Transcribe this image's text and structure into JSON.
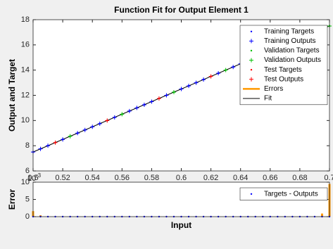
{
  "chart_data": [
    {
      "type": "scatter",
      "title": "Function Fit for Output Element 1",
      "y_label": "Output and Target",
      "xlim": [
        0.5,
        0.7
      ],
      "xticks": [
        0.5,
        0.52,
        0.54,
        0.56,
        0.58,
        0.6,
        0.62,
        0.64,
        0.66,
        0.68,
        0.7
      ],
      "ylim": [
        6,
        18
      ],
      "yticks": [
        6,
        8,
        10,
        12,
        14,
        16,
        18
      ],
      "legend": "upper right",
      "series": [
        {
          "name": "Training Targets",
          "color": "#0000ff",
          "marker": "dot",
          "x": [
            0.5,
            0.505,
            0.51,
            0.52,
            0.53,
            0.535,
            0.54,
            0.545,
            0.555,
            0.565,
            0.57,
            0.575,
            0.58,
            0.59,
            0.6,
            0.605,
            0.61,
            0.615,
            0.625,
            0.635,
            0.64,
            0.645,
            0.65,
            0.66,
            0.67,
            0.675,
            0.68,
            0.685,
            0.695
          ],
          "values": [
            7.5,
            7.75,
            8,
            8.5,
            9,
            9.25,
            9.5,
            9.75,
            10.25,
            10.75,
            11,
            11.25,
            11.5,
            12,
            12.5,
            12.75,
            13,
            13.25,
            13.75,
            14.25,
            14.5,
            14.75,
            15,
            15.5,
            16,
            16.25,
            16.5,
            16.75,
            17.25
          ]
        },
        {
          "name": "Training Outputs",
          "color": "#0000ff",
          "marker": "plus",
          "x": [
            0.5,
            0.505,
            0.51,
            0.52,
            0.53,
            0.535,
            0.54,
            0.545,
            0.555,
            0.565,
            0.57,
            0.575,
            0.58,
            0.59,
            0.6,
            0.605,
            0.61,
            0.615,
            0.625,
            0.635,
            0.64,
            0.645,
            0.65,
            0.66,
            0.67,
            0.675,
            0.68,
            0.685,
            0.695
          ],
          "values": [
            7.5,
            7.75,
            8,
            8.5,
            9,
            9.25,
            9.5,
            9.75,
            10.25,
            10.75,
            11,
            11.25,
            11.5,
            12,
            12.5,
            12.75,
            13,
            13.25,
            13.75,
            14.25,
            14.5,
            14.75,
            15,
            15.5,
            16,
            16.25,
            16.5,
            16.75,
            17.25
          ]
        },
        {
          "name": "Validation Targets",
          "color": "#00c000",
          "marker": "dot",
          "x": [
            0.525,
            0.56,
            0.595,
            0.63,
            0.665,
            0.7
          ],
          "values": [
            8.75,
            10.5,
            12.25,
            14,
            15.75,
            17.5
          ]
        },
        {
          "name": "Validation Outputs",
          "color": "#00c000",
          "marker": "plus",
          "x": [
            0.525,
            0.56,
            0.595,
            0.63,
            0.665,
            0.7
          ],
          "values": [
            8.75,
            10.5,
            12.25,
            14,
            15.75,
            17.5
          ]
        },
        {
          "name": "Test Targets",
          "color": "#ff0000",
          "marker": "dot",
          "x": [
            0.515,
            0.55,
            0.585,
            0.62,
            0.655,
            0.69
          ],
          "values": [
            8.25,
            10,
            11.75,
            13.5,
            15.25,
            17
          ]
        },
        {
          "name": "Test Outputs",
          "color": "#ff0000",
          "marker": "plus",
          "x": [
            0.515,
            0.55,
            0.585,
            0.62,
            0.655,
            0.69
          ],
          "values": [
            8.25,
            10,
            11.75,
            13.5,
            15.25,
            17
          ]
        },
        {
          "name": "Errors",
          "color": "#ff9900",
          "marker": "line"
        },
        {
          "name": "Fit",
          "color": "#000000",
          "marker": "line",
          "x": [
            0.5,
            0.7
          ],
          "values": [
            7.5,
            17.5
          ]
        }
      ]
    },
    {
      "type": "stem",
      "x_label": "Input",
      "y_label": "Error",
      "scale_label": {
        "base": "10",
        "exponent": "-3"
      },
      "xlim": [
        0.5,
        0.7
      ],
      "ylim": [
        0,
        10
      ],
      "yticks": [
        0,
        5,
        10
      ],
      "legend": "upper right",
      "stem_color": "#ff9900",
      "series": [
        {
          "name": "Targets - Outputs",
          "color": "#0000ff",
          "x": [
            0.5,
            0.505,
            0.51,
            0.515,
            0.52,
            0.525,
            0.53,
            0.535,
            0.54,
            0.545,
            0.55,
            0.555,
            0.56,
            0.565,
            0.57,
            0.575,
            0.58,
            0.585,
            0.59,
            0.595,
            0.6,
            0.605,
            0.61,
            0.615,
            0.62,
            0.625,
            0.63,
            0.635,
            0.64,
            0.645,
            0.65,
            0.655,
            0.66,
            0.665,
            0.67,
            0.675,
            0.68,
            0.685,
            0.69,
            0.695,
            0.7
          ],
          "values": [
            1.6,
            0.4,
            0.1,
            0.1,
            0.1,
            0.1,
            0.1,
            0.1,
            0.1,
            0.1,
            0.1,
            0.1,
            0.1,
            0.1,
            0.1,
            0.1,
            0.1,
            0.1,
            0.1,
            0.1,
            0.1,
            0.1,
            0.1,
            0.1,
            0.1,
            0.1,
            0.1,
            0.1,
            0.1,
            0.1,
            0.1,
            0.1,
            0.1,
            0.1,
            0.1,
            0.1,
            0.1,
            0.1,
            0.1,
            0.9,
            9.5
          ]
        }
      ]
    }
  ]
}
